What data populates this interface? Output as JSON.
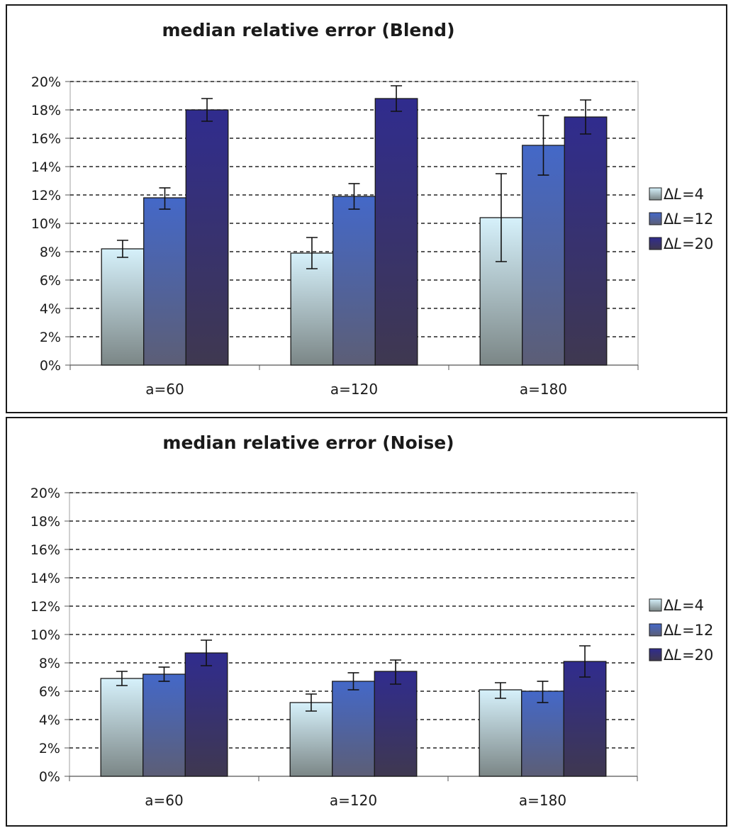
{
  "chart_data": [
    {
      "type": "bar",
      "title": "median relative error (Blend)",
      "xlabel": "",
      "ylabel": "",
      "categories": [
        "a=60",
        "a=120",
        "a=180"
      ],
      "ylim": [
        0,
        20
      ],
      "yticks": [
        "0%",
        "2%",
        "4%",
        "6%",
        "8%",
        "10%",
        "12%",
        "14%",
        "16%",
        "18%",
        "20%"
      ],
      "grid": true,
      "legend_position": "right",
      "series": [
        {
          "name": "ΔL=4",
          "name_prefix": "Δ",
          "name_var": "L",
          "name_suffix": "=4",
          "values": [
            8.2,
            7.9,
            10.4
          ],
          "err_low": [
            7.6,
            6.8,
            7.3
          ],
          "err_high": [
            8.8,
            9.0,
            13.5
          ],
          "color_top": "#d6f1fb",
          "color_bottom": "#7b8686"
        },
        {
          "name": "ΔL=12",
          "name_prefix": "Δ",
          "name_var": "L",
          "name_suffix": "=12",
          "values": [
            11.8,
            11.9,
            15.5
          ],
          "err_low": [
            11.0,
            11.0,
            13.4
          ],
          "err_high": [
            12.5,
            12.8,
            17.6
          ],
          "color_top": "#4468c8",
          "color_bottom": "#5c5e76"
        },
        {
          "name": "ΔL=20",
          "name_prefix": "Δ",
          "name_var": "L",
          "name_suffix": "=20",
          "values": [
            18.0,
            18.8,
            17.5
          ],
          "err_low": [
            17.2,
            17.9,
            16.3
          ],
          "err_high": [
            18.8,
            19.7,
            18.7
          ],
          "color_top": "#302c8e",
          "color_bottom": "#3f3850"
        }
      ]
    },
    {
      "type": "bar",
      "title": "median relative error (Noise)",
      "xlabel": "",
      "ylabel": "",
      "categories": [
        "a=60",
        "a=120",
        "a=180"
      ],
      "ylim": [
        0,
        20
      ],
      "yticks": [
        "0%",
        "2%",
        "4%",
        "6%",
        "8%",
        "10%",
        "12%",
        "14%",
        "16%",
        "18%",
        "20%"
      ],
      "grid": true,
      "legend_position": "right",
      "series": [
        {
          "name": "ΔL=4",
          "name_prefix": "Δ",
          "name_var": "L",
          "name_suffix": "=4",
          "values": [
            6.9,
            5.2,
            6.1
          ],
          "err_low": [
            6.4,
            4.6,
            5.5
          ],
          "err_high": [
            7.4,
            5.8,
            6.6
          ],
          "color_top": "#d6f1fb",
          "color_bottom": "#7b8686"
        },
        {
          "name": "ΔL=12",
          "name_prefix": "Δ",
          "name_var": "L",
          "name_suffix": "=12",
          "values": [
            7.2,
            6.7,
            6.0
          ],
          "err_low": [
            6.7,
            6.1,
            5.2
          ],
          "err_high": [
            7.7,
            7.3,
            6.7
          ],
          "color_top": "#4468c8",
          "color_bottom": "#5c5e76"
        },
        {
          "name": "ΔL=20",
          "name_prefix": "Δ",
          "name_var": "L",
          "name_suffix": "=20",
          "values": [
            8.7,
            7.4,
            8.1
          ],
          "err_low": [
            7.8,
            6.5,
            7.0
          ],
          "err_high": [
            9.6,
            8.2,
            9.2
          ],
          "color_top": "#302c8e",
          "color_bottom": "#3f3850"
        }
      ]
    }
  ]
}
